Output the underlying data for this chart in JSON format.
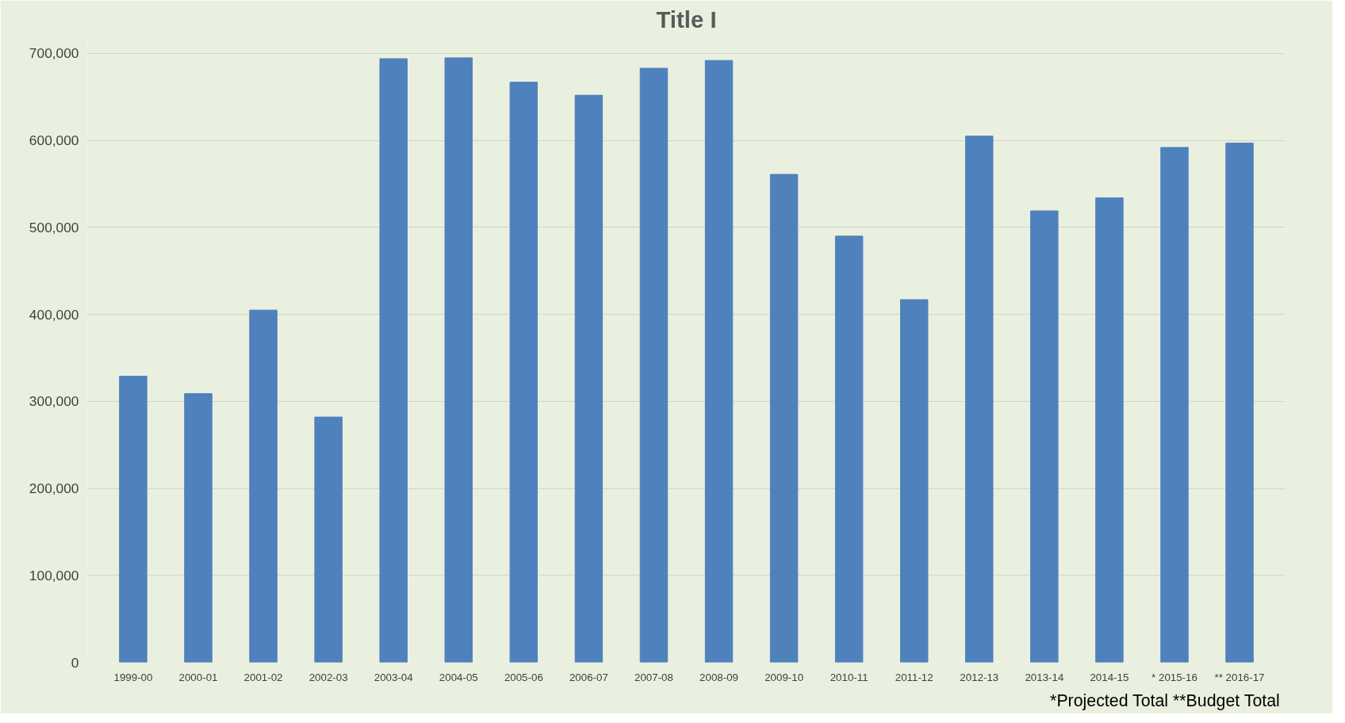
{
  "chart_data": {
    "type": "bar",
    "title": "Title I",
    "categories": [
      "1999-00",
      "2000-01",
      "2001-02",
      "2002-03",
      "2003-04",
      "2004-05",
      "2005-06",
      "2006-07",
      "2007-08",
      "2008-09",
      "2009-10",
      "2010-11",
      "2011-12",
      "2012-13",
      "2013-14",
      "2014-15",
      "* 2015-16",
      "** 2016-17"
    ],
    "values": [
      329000,
      309000,
      405000,
      282000,
      694000,
      695000,
      667000,
      652000,
      683000,
      692000,
      561000,
      490000,
      417000,
      605000,
      519000,
      534000,
      592000,
      597000
    ],
    "color": "#4f81bd",
    "ylim": [
      0,
      720000
    ],
    "yticks": [
      {
        "value": 0,
        "label": "0"
      },
      {
        "value": 100000,
        "label": "100,000"
      },
      {
        "value": 200000,
        "label": "200,000"
      },
      {
        "value": 300000,
        "label": "300,000"
      },
      {
        "value": 400000,
        "label": "400,000"
      },
      {
        "value": 500000,
        "label": "500,000"
      },
      {
        "value": 600000,
        "label": "600,000"
      },
      {
        "value": 700000,
        "label": "700,000"
      }
    ],
    "grid": "y",
    "annotations": [
      "*Projected Total  **Budget Total"
    ]
  }
}
